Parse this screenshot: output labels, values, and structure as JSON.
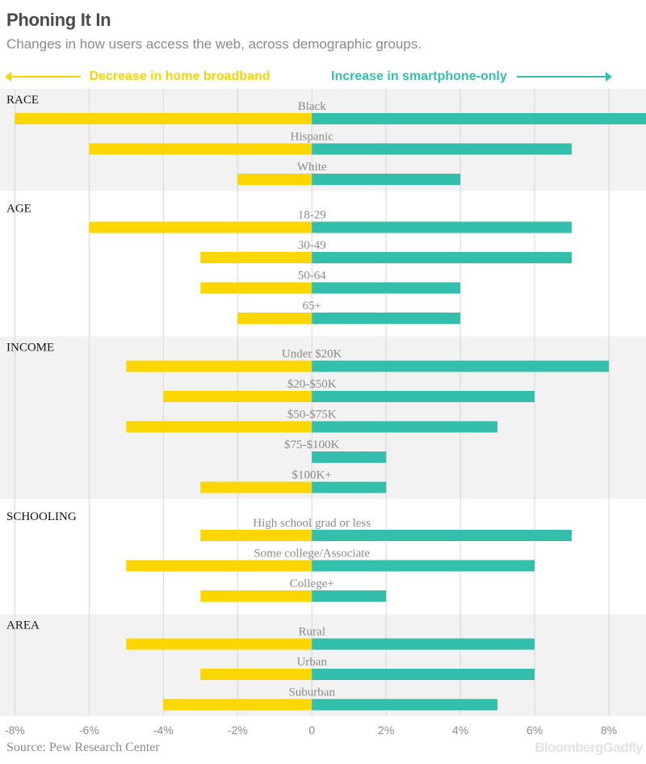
{
  "title": "Phoning It In",
  "subtitle": "Changes in how users access the web, across demographic groups.",
  "legend": {
    "left_label": "Decrease in home broadband",
    "right_label": "Increase in smartphone-only"
  },
  "source": "Source: Pew Research Center",
  "logo": {
    "part1": "Bloomberg",
    "part2": "Gadfly"
  },
  "colors": {
    "decrease": "#fcd600",
    "increase": "#33bfab",
    "band": "#f2f2f2",
    "grid": "#d6d6d6",
    "category_text": "#8a8a8a",
    "group_text": "#111111"
  },
  "chart_data": {
    "type": "bar",
    "orientation": "horizontal",
    "xlim": [
      -8.4,
      9
    ],
    "xticks": [
      -8,
      -6,
      -4,
      -2,
      0,
      2,
      4,
      6,
      8
    ],
    "xtick_labels": [
      "-8%",
      "-6%",
      "-4%",
      "-2%",
      "0",
      "2%",
      "4%",
      "6%",
      "8%"
    ],
    "series": [
      {
        "name": "Decrease in home broadband"
      },
      {
        "name": "Increase in smartphone-only"
      }
    ],
    "groups": [
      {
        "name": "RACE",
        "rows": [
          {
            "label": "Black",
            "decrease": -8,
            "increase": 9
          },
          {
            "label": "Hispanic",
            "decrease": -6,
            "increase": 7
          },
          {
            "label": "White",
            "decrease": -2,
            "increase": 4
          }
        ]
      },
      {
        "name": "AGE",
        "rows": [
          {
            "label": "18-29",
            "decrease": -6,
            "increase": 7
          },
          {
            "label": "30-49",
            "decrease": -3,
            "increase": 7
          },
          {
            "label": "50-64",
            "decrease": -3,
            "increase": 4
          },
          {
            "label": "65+",
            "decrease": -2,
            "increase": 4
          }
        ]
      },
      {
        "name": "INCOME",
        "rows": [
          {
            "label": "Under $20K",
            "decrease": -5,
            "increase": 8
          },
          {
            "label": "$20-$50K",
            "decrease": -4,
            "increase": 6
          },
          {
            "label": "$50-$75K",
            "decrease": -5,
            "increase": 5
          },
          {
            "label": "$75-$100K",
            "decrease": 0,
            "increase": 2
          },
          {
            "label": "$100K+",
            "decrease": -3,
            "increase": 2
          }
        ]
      },
      {
        "name": "SCHOOLING",
        "rows": [
          {
            "label": "High school grad or less",
            "decrease": -3,
            "increase": 7
          },
          {
            "label": "Some college/Associate",
            "decrease": -5,
            "increase": 6
          },
          {
            "label": "College+",
            "decrease": -3,
            "increase": 2
          }
        ]
      },
      {
        "name": "AREA",
        "rows": [
          {
            "label": "Rural",
            "decrease": -5,
            "increase": 6
          },
          {
            "label": "Urban",
            "decrease": -3,
            "increase": 6
          },
          {
            "label": "Suburban",
            "decrease": -4,
            "increase": 5
          }
        ]
      }
    ]
  }
}
